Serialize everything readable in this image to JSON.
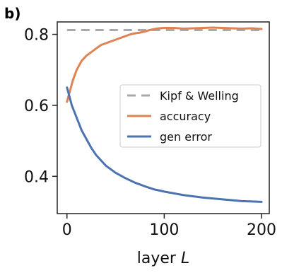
{
  "panel_label": "b)",
  "chart_data": {
    "type": "line",
    "xlabel_prefix": "layer ",
    "xlabel_var": "L",
    "xlim": [
      -10,
      208
    ],
    "ylim": [
      0.295,
      0.835
    ],
    "xticks": [
      0,
      100,
      200
    ],
    "yticks": [
      0.4,
      0.6,
      0.8
    ],
    "xtick_labels": [
      "0",
      "100",
      "200"
    ],
    "ytick_labels": [
      "0.4",
      "0.6",
      "0.8"
    ],
    "grid": false,
    "legend_position": "center-right",
    "colors": {
      "reference": "#aaaaaa",
      "accuracy": "#dd8452",
      "gen_error": "#4c72b0"
    },
    "series": [
      {
        "name": "Kipf & Welling",
        "style": "dashed",
        "x": [
          0,
          200
        ],
        "y": [
          0.812,
          0.812
        ]
      },
      {
        "name": "accuracy",
        "style": "solid",
        "x": [
          0,
          3,
          6,
          10,
          15,
          20,
          25,
          30,
          35,
          40,
          45,
          50,
          55,
          60,
          65,
          70,
          75,
          80,
          85,
          90,
          95,
          100,
          110,
          120,
          130,
          140,
          150,
          160,
          170,
          180,
          190,
          200
        ],
        "y": [
          0.61,
          0.64,
          0.67,
          0.7,
          0.725,
          0.74,
          0.75,
          0.76,
          0.77,
          0.775,
          0.78,
          0.785,
          0.79,
          0.795,
          0.8,
          0.803,
          0.805,
          0.808,
          0.812,
          0.815,
          0.817,
          0.818,
          0.818,
          0.816,
          0.817,
          0.818,
          0.819,
          0.818,
          0.817,
          0.816,
          0.817,
          0.815
        ]
      },
      {
        "name": "gen error",
        "style": "solid",
        "x": [
          0,
          5,
          10,
          15,
          20,
          25,
          30,
          40,
          50,
          60,
          70,
          80,
          90,
          100,
          120,
          140,
          160,
          180,
          200
        ],
        "y": [
          0.65,
          0.6,
          0.565,
          0.53,
          0.505,
          0.48,
          0.46,
          0.43,
          0.41,
          0.395,
          0.382,
          0.372,
          0.363,
          0.357,
          0.347,
          0.34,
          0.335,
          0.33,
          0.328
        ]
      }
    ]
  }
}
